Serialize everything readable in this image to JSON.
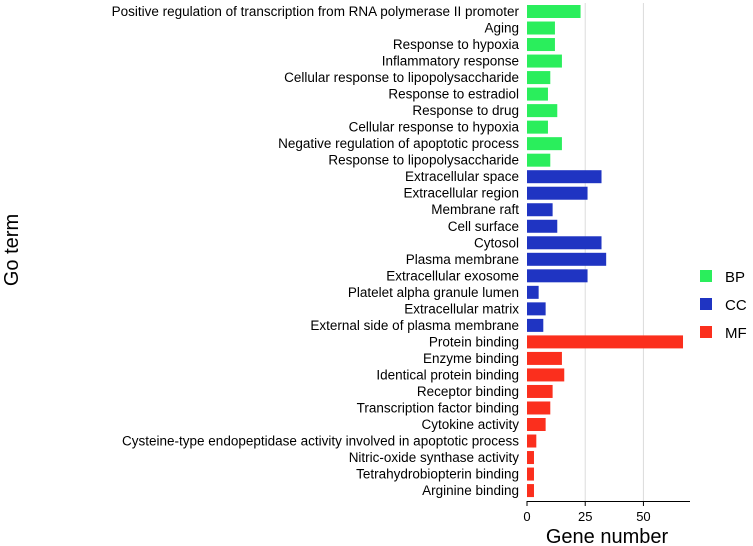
{
  "chart_data": {
    "type": "bar",
    "orientation": "horizontal",
    "xlabel": "Gene number",
    "ylabel": "Go term",
    "xlim": [
      0,
      70
    ],
    "xticks": [
      0,
      25,
      50
    ],
    "grid": "vertical",
    "colors": {
      "BP": "#2aee5c",
      "CC": "#1f34c2",
      "MF": "#fb2f1d"
    },
    "legend": [
      {
        "label": "BP",
        "color": "#2aee5c"
      },
      {
        "label": "CC",
        "color": "#1f34c2"
      },
      {
        "label": "MF",
        "color": "#fb2f1d"
      }
    ],
    "bars": [
      {
        "category": "Positive regulation of transcription from RNA polymerase II promoter",
        "group": "BP",
        "value": 23
      },
      {
        "category": "Aging",
        "group": "BP",
        "value": 12
      },
      {
        "category": "Response to hypoxia",
        "group": "BP",
        "value": 12
      },
      {
        "category": "Inflammatory response",
        "group": "BP",
        "value": 15
      },
      {
        "category": "Cellular response to lipopolysaccharide",
        "group": "BP",
        "value": 10
      },
      {
        "category": "Response to estradiol",
        "group": "BP",
        "value": 9
      },
      {
        "category": "Response to drug",
        "group": "BP",
        "value": 13
      },
      {
        "category": "Cellular response to hypoxia",
        "group": "BP",
        "value": 9
      },
      {
        "category": "Negative regulation of apoptotic process",
        "group": "BP",
        "value": 15
      },
      {
        "category": "Response to lipopolysaccharide",
        "group": "BP",
        "value": 10
      },
      {
        "category": "Extracellular space",
        "group": "CC",
        "value": 32
      },
      {
        "category": "Extracellular region",
        "group": "CC",
        "value": 26
      },
      {
        "category": "Membrane raft",
        "group": "CC",
        "value": 11
      },
      {
        "category": "Cell surface",
        "group": "CC",
        "value": 13
      },
      {
        "category": "Cytosol",
        "group": "CC",
        "value": 32
      },
      {
        "category": "Plasma membrane",
        "group": "CC",
        "value": 34
      },
      {
        "category": "Extracellular exosome",
        "group": "CC",
        "value": 26
      },
      {
        "category": "Platelet alpha granule lumen",
        "group": "CC",
        "value": 5
      },
      {
        "category": "Extracellular matrix",
        "group": "CC",
        "value": 8
      },
      {
        "category": "External side of plasma membrane",
        "group": "CC",
        "value": 7
      },
      {
        "category": "Protein binding",
        "group": "MF",
        "value": 67
      },
      {
        "category": "Enzyme binding",
        "group": "MF",
        "value": 15
      },
      {
        "category": "Identical protein binding",
        "group": "MF",
        "value": 16
      },
      {
        "category": "Receptor binding",
        "group": "MF",
        "value": 11
      },
      {
        "category": "Transcription factor binding",
        "group": "MF",
        "value": 10
      },
      {
        "category": "Cytokine activity",
        "group": "MF",
        "value": 8
      },
      {
        "category": "Cysteine-type endopeptidase activity involved in apoptotic process",
        "group": "MF",
        "value": 4
      },
      {
        "category": "Nitric-oxide synthase activity",
        "group": "MF",
        "value": 3
      },
      {
        "category": "Tetrahydrobiopterin binding",
        "group": "MF",
        "value": 3
      },
      {
        "category": "Arginine binding",
        "group": "MF",
        "value": 3
      }
    ]
  }
}
